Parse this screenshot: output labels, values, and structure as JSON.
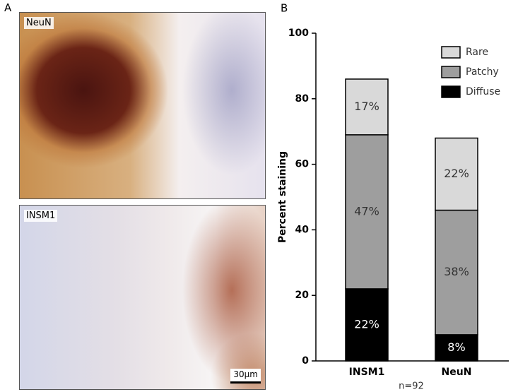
{
  "panel_a": {
    "label": "A",
    "images": [
      {
        "label": "NeuN"
      },
      {
        "label": "INSM1",
        "scale_bar": "30µm"
      }
    ]
  },
  "chart_data": {
    "type": "bar",
    "panel_label": "B",
    "stacked": true,
    "ylabel": "Percent staining",
    "note": "n=92",
    "categories": [
      "INSM1",
      "NeuN"
    ],
    "series": [
      {
        "name": "Diffuse",
        "color": "#000000",
        "label_color": "#ffffff",
        "values": [
          22,
          8
        ],
        "value_labels": [
          "22%",
          "8%"
        ]
      },
      {
        "name": "Patchy",
        "color": "#9e9e9e",
        "label_color": "#333333",
        "values": [
          47,
          38
        ],
        "value_labels": [
          "47%",
          "38%"
        ]
      },
      {
        "name": "Rare",
        "color": "#d9d9d9",
        "label_color": "#333333",
        "values": [
          17,
          22
        ],
        "value_labels": [
          "17%",
          "22%"
        ]
      }
    ],
    "ylim": [
      0,
      100
    ],
    "yticks": [
      0,
      20,
      40,
      60,
      80,
      100
    ],
    "legend": "upper-right"
  }
}
